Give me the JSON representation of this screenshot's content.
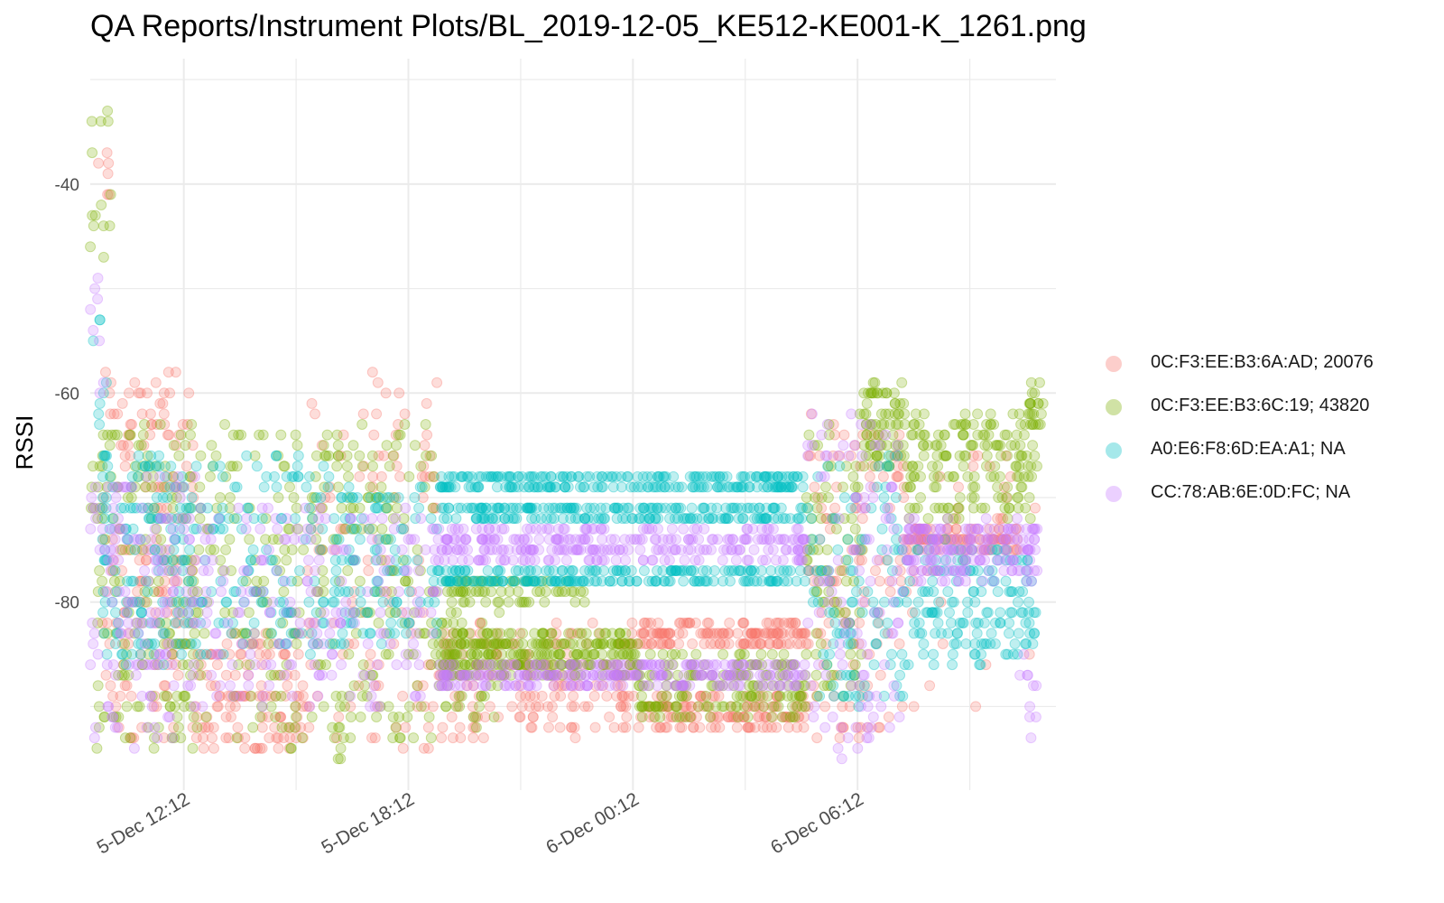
{
  "chart_data": {
    "type": "scatter",
    "title": "QA Reports/Instrument Plots/BL_2019-12-05_KE512-KE001-K_1261.png",
    "xlabel": "",
    "ylabel": "RSSI",
    "x_is_time": true,
    "xlim": [
      "2019-12-05T09:42",
      "2019-12-06T11:30"
    ],
    "x_ticks": [
      {
        "t": "2019-12-05T12:12",
        "label": "5-Dec 12:12"
      },
      {
        "t": "2019-12-05T18:12",
        "label": "5-Dec 18:12"
      },
      {
        "t": "2019-12-06T00:12",
        "label": "6-Dec 00:12"
      },
      {
        "t": "2019-12-06T06:12",
        "label": "6-Dec 06:12"
      }
    ],
    "ylim": [
      -98,
      -28
    ],
    "y_ticks": [
      -40,
      -60,
      -80
    ],
    "grid": true,
    "legend_position": "right",
    "point_alpha": 0.25,
    "series": [
      {
        "name": "0C:F3:EE:B3:6A:AD; 20076",
        "color": "#F8766D",
        "bands": [
          {
            "start": "2019-12-05T09:50",
            "end": "2019-12-05T10:20",
            "y_min": -43,
            "y_max": -37,
            "density": 6
          },
          {
            "start": "2019-12-05T10:00",
            "end": "2019-12-05T12:30",
            "y_min": -93,
            "y_max": -58,
            "density": 160
          },
          {
            "start": "2019-12-05T12:30",
            "end": "2019-12-05T15:30",
            "y_min": -94,
            "y_max": -83,
            "density": 120
          },
          {
            "start": "2019-12-05T15:30",
            "end": "2019-12-05T19:00",
            "y_min": -94,
            "y_max": -58,
            "density": 110
          },
          {
            "start": "2019-12-05T19:00",
            "end": "2019-12-06T00:20",
            "y_min": -93,
            "y_max": -82,
            "density": 170
          },
          {
            "start": "2019-12-06T00:20",
            "end": "2019-12-06T04:50",
            "y_min": -84,
            "y_max": -82,
            "density": 140
          },
          {
            "start": "2019-12-06T00:20",
            "end": "2019-12-06T04:50",
            "y_min": -92,
            "y_max": -89,
            "density": 120
          },
          {
            "start": "2019-12-06T04:50",
            "end": "2019-12-06T07:30",
            "y_min": -93,
            "y_max": -62,
            "density": 120
          },
          {
            "start": "2019-12-06T07:30",
            "end": "2019-12-06T10:30",
            "y_min": -75,
            "y_max": -73,
            "density": 80
          },
          {
            "start": "2019-12-06T07:30",
            "end": "2019-12-06T11:00",
            "y_min": -90,
            "y_max": -66,
            "density": 40
          }
        ]
      },
      {
        "name": "0C:F3:EE:B3:6C:19; 43820",
        "color": "#7CAE00",
        "bands": [
          {
            "start": "2019-12-05T09:42",
            "end": "2019-12-05T10:20",
            "y_min": -47,
            "y_max": -33,
            "density": 14
          },
          {
            "start": "2019-12-05T09:42",
            "end": "2019-12-05T12:30",
            "y_min": -94,
            "y_max": -63,
            "density": 170
          },
          {
            "start": "2019-12-05T12:30",
            "end": "2019-12-05T16:30",
            "y_min": -95,
            "y_max": -63,
            "density": 170
          },
          {
            "start": "2019-12-05T16:30",
            "end": "2019-12-05T19:00",
            "y_min": -93,
            "y_max": -63,
            "density": 120
          },
          {
            "start": "2019-12-05T19:00",
            "end": "2019-12-05T23:00",
            "y_min": -80,
            "y_max": -78,
            "density": 70
          },
          {
            "start": "2019-12-05T19:00",
            "end": "2019-12-06T00:20",
            "y_min": -87,
            "y_max": -83,
            "density": 260
          },
          {
            "start": "2019-12-05T19:00",
            "end": "2019-12-05T20:40",
            "y_min": -92,
            "y_max": -80,
            "density": 50
          },
          {
            "start": "2019-12-06T00:20",
            "end": "2019-12-06T04:50",
            "y_min": -91,
            "y_max": -85,
            "density": 170
          },
          {
            "start": "2019-12-06T04:50",
            "end": "2019-12-06T06:20",
            "y_min": -89,
            "y_max": -62,
            "density": 80
          },
          {
            "start": "2019-12-06T06:20",
            "end": "2019-12-06T07:30",
            "y_min": -67,
            "y_max": -59,
            "density": 70
          },
          {
            "start": "2019-12-06T07:30",
            "end": "2019-12-06T11:00",
            "y_min": -72,
            "y_max": -62,
            "density": 160
          },
          {
            "start": "2019-12-06T10:40",
            "end": "2019-12-06T11:10",
            "y_min": -63,
            "y_max": -59,
            "density": 20
          }
        ]
      },
      {
        "name": "A0:E6:F8:6D:EA:A1; NA",
        "color": "#00BFC4",
        "bands": [
          {
            "start": "2019-12-05T09:42",
            "end": "2019-12-05T10:10",
            "y_min": -69,
            "y_max": -52,
            "density": 10
          },
          {
            "start": "2019-12-05T10:00",
            "end": "2019-12-05T12:30",
            "y_min": -86,
            "y_max": -66,
            "density": 150
          },
          {
            "start": "2019-12-05T12:30",
            "end": "2019-12-05T16:30",
            "y_min": -85,
            "y_max": -66,
            "density": 140
          },
          {
            "start": "2019-12-05T16:30",
            "end": "2019-12-05T19:00",
            "y_min": -84,
            "y_max": -69,
            "density": 90
          },
          {
            "start": "2019-12-05T19:00",
            "end": "2019-12-06T04:50",
            "y_min": -69,
            "y_max": -68,
            "density": 220
          },
          {
            "start": "2019-12-05T19:00",
            "end": "2019-12-06T04:50",
            "y_min": -72,
            "y_max": -71,
            "density": 200
          },
          {
            "start": "2019-12-05T19:00",
            "end": "2019-12-06T04:50",
            "y_min": -78,
            "y_max": -77,
            "density": 200
          },
          {
            "start": "2019-12-06T04:50",
            "end": "2019-12-06T07:30",
            "y_min": -90,
            "y_max": -66,
            "density": 110
          },
          {
            "start": "2019-12-06T07:30",
            "end": "2019-12-06T11:00",
            "y_min": -86,
            "y_max": -74,
            "density": 150
          }
        ]
      },
      {
        "name": "CC:78:AB:6E:0D:FC; NA",
        "color": "#C77CFF",
        "bands": [
          {
            "start": "2019-12-05T09:42",
            "end": "2019-12-05T10:10",
            "y_min": -63,
            "y_max": -45,
            "density": 8
          },
          {
            "start": "2019-12-05T09:42",
            "end": "2019-12-05T12:30",
            "y_min": -94,
            "y_max": -68,
            "density": 150
          },
          {
            "start": "2019-12-05T12:30",
            "end": "2019-12-05T19:00",
            "y_min": -90,
            "y_max": -71,
            "density": 200
          },
          {
            "start": "2019-12-05T19:00",
            "end": "2019-12-06T04:50",
            "y_min": -76,
            "y_max": -73,
            "density": 280
          },
          {
            "start": "2019-12-05T19:00",
            "end": "2019-12-06T04:50",
            "y_min": -88,
            "y_max": -86,
            "density": 260
          },
          {
            "start": "2019-12-06T04:50",
            "end": "2019-12-06T07:30",
            "y_min": -95,
            "y_max": -62,
            "density": 110
          },
          {
            "start": "2019-12-06T07:30",
            "end": "2019-12-06T11:00",
            "y_min": -78,
            "y_max": -72,
            "density": 170
          },
          {
            "start": "2019-12-06T10:30",
            "end": "2019-12-06T11:00",
            "y_min": -95,
            "y_max": -85,
            "density": 10
          }
        ]
      }
    ]
  }
}
